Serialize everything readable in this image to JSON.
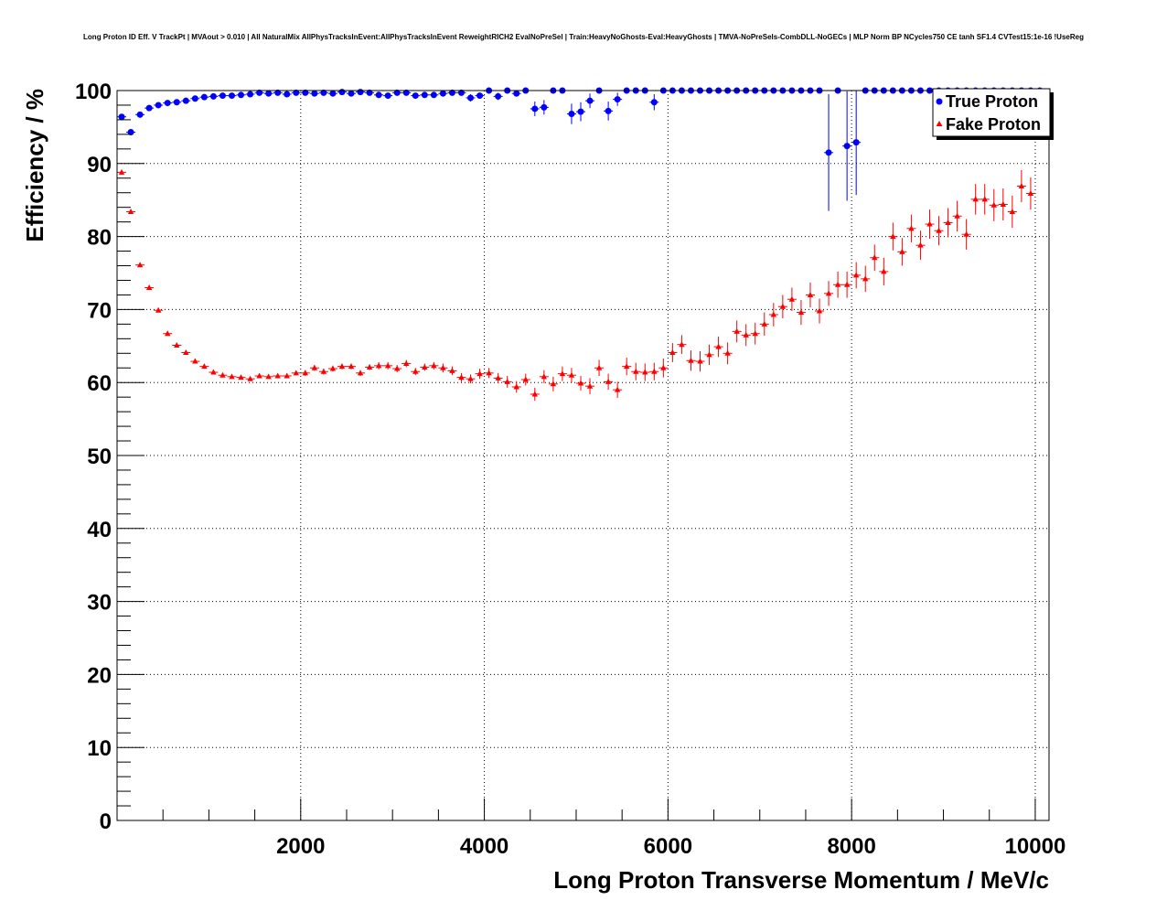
{
  "chart_data": {
    "type": "scatter",
    "title": "Long Proton ID Eff. V TrackPt | MVAout > 0.010 | All NaturalMix AllPhysTracksInEvent:AllPhysTracksInEvent ReweightRICH2 EvalNoPreSel | Train:HeavyNoGhosts-Eval:HeavyGhosts | TMVA-NoPreSels-CombDLL-NoGECs | MLP Norm BP NCycles750 CE tanh SF1.4 CVTest15:1e-16 !UseReg",
    "xlabel": "Long Proton Transverse Momentum / MeV/c",
    "ylabel": "Efficiency / %",
    "xlim": [
      0,
      10150
    ],
    "ylim": [
      0,
      100
    ],
    "xticks": [
      2000,
      4000,
      6000,
      8000,
      10000
    ],
    "yticks": [
      0,
      10,
      20,
      30,
      40,
      50,
      60,
      70,
      80,
      90,
      100
    ],
    "grid": true,
    "legend_position": "top-right",
    "series": [
      {
        "name": "True Proton",
        "color": "#0000ff",
        "marker": "circle",
        "points": [
          [
            50,
            96.4,
            0.4
          ],
          [
            150,
            94.3,
            0.4
          ],
          [
            250,
            96.7,
            0.3
          ],
          [
            350,
            97.6,
            0.3
          ],
          [
            450,
            98.0,
            0.2
          ],
          [
            550,
            98.3,
            0.2
          ],
          [
            650,
            98.4,
            0.2
          ],
          [
            750,
            98.6,
            0.2
          ],
          [
            850,
            98.9,
            0.2
          ],
          [
            950,
            99.1,
            0.2
          ],
          [
            1050,
            99.2,
            0.2
          ],
          [
            1150,
            99.3,
            0.2
          ],
          [
            1250,
            99.3,
            0.2
          ],
          [
            1350,
            99.4,
            0.2
          ],
          [
            1450,
            99.5,
            0.2
          ],
          [
            1550,
            99.7,
            0.2
          ],
          [
            1650,
            99.6,
            0.2
          ],
          [
            1750,
            99.7,
            0.2
          ],
          [
            1850,
            99.5,
            0.2
          ],
          [
            1950,
            99.7,
            0.2
          ],
          [
            2050,
            99.7,
            0.2
          ],
          [
            2150,
            99.6,
            0.2
          ],
          [
            2250,
            99.7,
            0.2
          ],
          [
            2350,
            99.6,
            0.2
          ],
          [
            2450,
            99.8,
            0.2
          ],
          [
            2550,
            99.6,
            0.2
          ],
          [
            2650,
            99.8,
            0.2
          ],
          [
            2750,
            99.7,
            0.2
          ],
          [
            2850,
            99.4,
            0.3
          ],
          [
            2950,
            99.3,
            0.3
          ],
          [
            3050,
            99.7,
            0.2
          ],
          [
            3150,
            99.7,
            0.2
          ],
          [
            3250,
            99.3,
            0.3
          ],
          [
            3350,
            99.4,
            0.3
          ],
          [
            3450,
            99.4,
            0.3
          ],
          [
            3550,
            99.6,
            0.3
          ],
          [
            3650,
            99.7,
            0.3
          ],
          [
            3750,
            99.7,
            0.3
          ],
          [
            3850,
            99.0,
            0.5
          ],
          [
            3950,
            99.3,
            0.4
          ],
          [
            4050,
            100.0,
            0.2
          ],
          [
            4150,
            99.2,
            0.5
          ],
          [
            4250,
            100.0,
            0.2
          ],
          [
            4350,
            99.6,
            0.4
          ],
          [
            4450,
            100.0,
            0.2
          ],
          [
            4550,
            97.5,
            1.0
          ],
          [
            4650,
            97.7,
            1.0
          ],
          [
            4750,
            100.0,
            0.2
          ],
          [
            4850,
            100.0,
            0.2
          ],
          [
            4950,
            96.8,
            1.4
          ],
          [
            5050,
            97.1,
            1.3
          ],
          [
            5150,
            98.6,
            1.0
          ],
          [
            5250,
            100.0,
            0.2
          ],
          [
            5350,
            97.2,
            1.3
          ],
          [
            5450,
            98.8,
            0.9
          ],
          [
            5550,
            100.0,
            0.2
          ],
          [
            5650,
            100.0,
            0.2
          ],
          [
            5750,
            100.0,
            0.2
          ],
          [
            5850,
            98.4,
            1.1
          ],
          [
            5950,
            100.0,
            0.2
          ],
          [
            6050,
            100.0,
            0.2
          ],
          [
            6150,
            100.0,
            0.2
          ],
          [
            6250,
            100.0,
            0.2
          ],
          [
            6350,
            100.0,
            0.2
          ],
          [
            6450,
            100.0,
            0.2
          ],
          [
            6550,
            100.0,
            0.2
          ],
          [
            6650,
            100.0,
            0.2
          ],
          [
            6750,
            100.0,
            0.2
          ],
          [
            6850,
            100.0,
            0.2
          ],
          [
            6950,
            100.0,
            0.2
          ],
          [
            7050,
            100.0,
            0.2
          ],
          [
            7150,
            100.0,
            0.2
          ],
          [
            7250,
            100.0,
            0.2
          ],
          [
            7350,
            100.0,
            0.2
          ],
          [
            7450,
            100.0,
            0.2
          ],
          [
            7550,
            100.0,
            0.2
          ],
          [
            7650,
            100.0,
            0.2
          ],
          [
            7750,
            91.5,
            8.0
          ],
          [
            7850,
            100.0,
            0.2
          ],
          [
            7950,
            92.4,
            7.5
          ],
          [
            8050,
            92.9,
            7.2
          ],
          [
            8150,
            100.0,
            0.2
          ],
          [
            8250,
            100.0,
            0.2
          ],
          [
            8350,
            100.0,
            0.2
          ],
          [
            8450,
            100.0,
            0.2
          ],
          [
            8550,
            100.0,
            0.2
          ],
          [
            8650,
            100.0,
            0.2
          ],
          [
            8750,
            100.0,
            0.2
          ],
          [
            8850,
            100.0,
            0.2
          ],
          [
            8950,
            100.0,
            0.2
          ],
          [
            9050,
            100.0,
            0.2
          ],
          [
            9150,
            100.0,
            0.2
          ],
          [
            9250,
            100.0,
            0.2
          ],
          [
            9350,
            100.0,
            0.2
          ],
          [
            9450,
            100.0,
            0.2
          ],
          [
            9550,
            100.0,
            0.2
          ],
          [
            9650,
            100.0,
            0.2
          ],
          [
            9750,
            100.0,
            0.2
          ],
          [
            9850,
            100.0,
            0.2
          ],
          [
            9950,
            100.0,
            0.2
          ],
          [
            10050,
            100.0,
            0.2
          ]
        ]
      },
      {
        "name": "Fake Proton",
        "color": "#ff0000",
        "marker": "triangle",
        "points": [
          [
            50,
            88.8,
            0.3
          ],
          [
            150,
            83.4,
            0.3
          ],
          [
            250,
            76.1,
            0.3
          ],
          [
            350,
            73.0,
            0.3
          ],
          [
            450,
            69.9,
            0.3
          ],
          [
            550,
            66.7,
            0.3
          ],
          [
            650,
            65.1,
            0.3
          ],
          [
            750,
            64.1,
            0.3
          ],
          [
            850,
            62.9,
            0.3
          ],
          [
            950,
            62.2,
            0.3
          ],
          [
            1050,
            61.4,
            0.3
          ],
          [
            1150,
            61.0,
            0.3
          ],
          [
            1250,
            60.8,
            0.3
          ],
          [
            1350,
            60.7,
            0.3
          ],
          [
            1450,
            60.5,
            0.3
          ],
          [
            1550,
            60.9,
            0.3
          ],
          [
            1650,
            60.8,
            0.3
          ],
          [
            1750,
            60.9,
            0.3
          ],
          [
            1850,
            60.9,
            0.3
          ],
          [
            1950,
            61.3,
            0.3
          ],
          [
            2050,
            61.3,
            0.4
          ],
          [
            2150,
            62.0,
            0.4
          ],
          [
            2250,
            61.5,
            0.4
          ],
          [
            2350,
            61.9,
            0.4
          ],
          [
            2450,
            62.2,
            0.4
          ],
          [
            2550,
            62.2,
            0.4
          ],
          [
            2650,
            61.3,
            0.4
          ],
          [
            2750,
            62.1,
            0.4
          ],
          [
            2850,
            62.3,
            0.5
          ],
          [
            2950,
            62.3,
            0.5
          ],
          [
            3050,
            61.9,
            0.5
          ],
          [
            3150,
            62.6,
            0.5
          ],
          [
            3250,
            61.5,
            0.5
          ],
          [
            3350,
            62.1,
            0.5
          ],
          [
            3450,
            62.3,
            0.5
          ],
          [
            3550,
            62.0,
            0.6
          ],
          [
            3650,
            61.6,
            0.6
          ],
          [
            3750,
            60.7,
            0.6
          ],
          [
            3850,
            60.5,
            0.6
          ],
          [
            3950,
            61.2,
            0.7
          ],
          [
            4050,
            61.3,
            0.7
          ],
          [
            4150,
            60.6,
            0.7
          ],
          [
            4250,
            60.1,
            0.8
          ],
          [
            4350,
            59.4,
            0.8
          ],
          [
            4450,
            60.4,
            0.8
          ],
          [
            4550,
            58.4,
            0.9
          ],
          [
            4650,
            60.8,
            0.9
          ],
          [
            4750,
            59.8,
            1.0
          ],
          [
            4850,
            61.2,
            1.0
          ],
          [
            4950,
            61.0,
            1.0
          ],
          [
            5050,
            59.9,
            1.0
          ],
          [
            5150,
            59.5,
            1.1
          ],
          [
            5250,
            62.0,
            1.1
          ],
          [
            5350,
            60.1,
            1.1
          ],
          [
            5450,
            59.0,
            1.1
          ],
          [
            5550,
            62.2,
            1.2
          ],
          [
            5650,
            61.5,
            1.2
          ],
          [
            5750,
            61.4,
            1.2
          ],
          [
            5850,
            61.5,
            1.2
          ],
          [
            5950,
            62.0,
            1.3
          ],
          [
            6050,
            64.1,
            1.3
          ],
          [
            6150,
            65.2,
            1.3
          ],
          [
            6250,
            63.0,
            1.4
          ],
          [
            6350,
            62.9,
            1.4
          ],
          [
            6450,
            63.8,
            1.4
          ],
          [
            6550,
            64.9,
            1.4
          ],
          [
            6650,
            64.0,
            1.5
          ],
          [
            6750,
            67.0,
            1.5
          ],
          [
            6850,
            66.5,
            1.5
          ],
          [
            6950,
            66.7,
            1.5
          ],
          [
            7050,
            68.0,
            1.6
          ],
          [
            7150,
            69.3,
            1.6
          ],
          [
            7250,
            70.4,
            1.6
          ],
          [
            7350,
            71.4,
            1.6
          ],
          [
            7450,
            69.6,
            1.7
          ],
          [
            7550,
            72.0,
            1.7
          ],
          [
            7650,
            69.8,
            1.7
          ],
          [
            7750,
            72.2,
            1.7
          ],
          [
            7850,
            73.4,
            1.8
          ],
          [
            7950,
            73.4,
            1.8
          ],
          [
            8050,
            74.7,
            1.8
          ],
          [
            8150,
            74.2,
            1.8
          ],
          [
            8250,
            77.1,
            1.8
          ],
          [
            8350,
            75.2,
            1.9
          ],
          [
            8450,
            80.0,
            1.9
          ],
          [
            8550,
            77.9,
            1.9
          ],
          [
            8650,
            81.1,
            1.9
          ],
          [
            8750,
            78.8,
            2.0
          ],
          [
            8850,
            81.7,
            2.0
          ],
          [
            8950,
            80.8,
            2.0
          ],
          [
            9050,
            81.9,
            2.0
          ],
          [
            9150,
            82.8,
            2.1
          ],
          [
            9250,
            80.3,
            2.1
          ],
          [
            9350,
            85.1,
            2.1
          ],
          [
            9450,
            85.1,
            2.1
          ],
          [
            9550,
            84.3,
            2.2
          ],
          [
            9650,
            84.4,
            2.2
          ],
          [
            9750,
            83.4,
            2.2
          ],
          [
            9850,
            86.9,
            2.2
          ],
          [
            9950,
            85.9,
            2.2
          ]
        ]
      }
    ]
  }
}
